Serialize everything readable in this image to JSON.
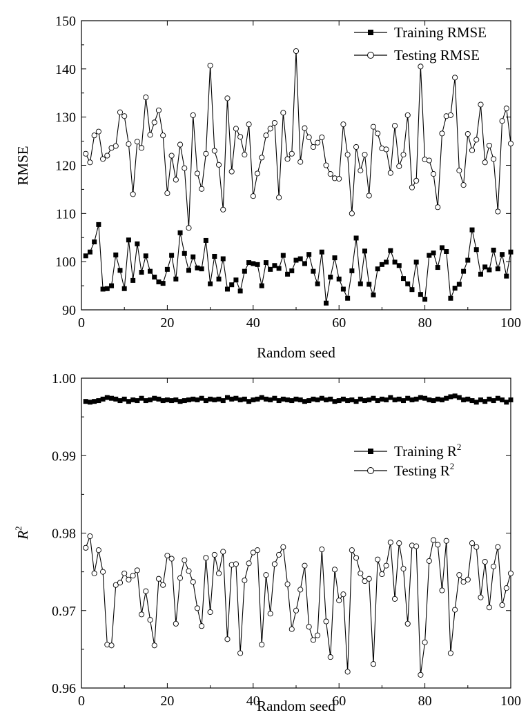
{
  "chart_data": [
    {
      "type": "line",
      "xlabel": "Random seed",
      "ylabel": "RMSE",
      "xlim": [
        0,
        100
      ],
      "ylim": [
        90,
        150
      ],
      "xticks": [
        "0",
        "20",
        "40",
        "60",
        "80",
        "100"
      ],
      "yticks": [
        "90",
        "100",
        "110",
        "120",
        "130",
        "140",
        "150"
      ],
      "legend_position": "top-right",
      "grid": false,
      "x": [
        1,
        2,
        3,
        4,
        5,
        6,
        7,
        8,
        9,
        10,
        11,
        12,
        13,
        14,
        15,
        16,
        17,
        18,
        19,
        20,
        21,
        22,
        23,
        24,
        25,
        26,
        27,
        28,
        29,
        30,
        31,
        32,
        33,
        34,
        35,
        36,
        37,
        38,
        39,
        40,
        41,
        42,
        43,
        44,
        45,
        46,
        47,
        48,
        49,
        50,
        51,
        52,
        53,
        54,
        55,
        56,
        57,
        58,
        59,
        60,
        61,
        62,
        63,
        64,
        65,
        66,
        67,
        68,
        69,
        70,
        71,
        72,
        73,
        74,
        75,
        76,
        77,
        78,
        79,
        80,
        81,
        82,
        83,
        84,
        85,
        86,
        87,
        88,
        89,
        90,
        91,
        92,
        93,
        94,
        95,
        96,
        97,
        98,
        99,
        100
      ],
      "series": [
        {
          "name": "Training RMSE",
          "marker": "filled-square",
          "values": [
            101.2,
            102.0,
            104.1,
            107.7,
            94.3,
            94.4,
            95.0,
            101.4,
            98.2,
            94.4,
            104.5,
            96.1,
            103.7,
            97.8,
            101.2,
            98.0,
            96.8,
            95.8,
            95.5,
            98.4,
            101.3,
            96.4,
            106.0,
            101.7,
            98.2,
            101.0,
            98.7,
            98.5,
            104.4,
            95.4,
            101.1,
            96.4,
            100.6,
            94.3,
            95.2,
            96.2,
            93.9,
            98.0,
            99.8,
            99.6,
            99.4,
            95.0,
            99.8,
            98.4,
            99.2,
            98.6,
            101.3,
            97.4,
            98.1,
            100.3,
            100.6,
            99.6,
            101.5,
            98.0,
            95.4,
            102.0,
            91.4,
            96.8,
            100.8,
            96.4,
            94.3,
            92.4,
            98.1,
            104.9,
            95.4,
            102.2,
            95.3,
            93.1,
            98.5,
            99.4,
            99.9,
            102.3,
            99.9,
            99.2,
            96.5,
            95.4,
            94.2,
            99.9,
            93.2,
            92.2,
            101.3,
            101.8,
            98.8,
            102.9,
            102.1,
            92.4,
            94.5,
            95.3,
            98.0,
            100.3,
            106.6,
            102.5,
            97.4,
            98.9,
            98.3,
            102.4,
            98.5,
            101.5,
            97.0,
            102.0
          ]
        },
        {
          "name": "Testing RMSE",
          "marker": "open-circle",
          "values": [
            122.4,
            120.6,
            126.2,
            127.0,
            121.3,
            122.0,
            123.6,
            124.0,
            131.0,
            130.2,
            124.4,
            114.0,
            124.9,
            123.6,
            134.1,
            126.3,
            128.9,
            131.4,
            126.2,
            114.2,
            122.0,
            117.0,
            124.3,
            119.4,
            107.0,
            130.4,
            118.3,
            115.1,
            122.4,
            140.7,
            123.0,
            120.1,
            110.8,
            133.9,
            118.7,
            127.6,
            125.9,
            122.2,
            128.5,
            113.6,
            118.3,
            121.6,
            126.2,
            127.6,
            128.8,
            113.3,
            130.9,
            121.3,
            122.4,
            143.7,
            120.7,
            127.7,
            125.8,
            123.8,
            124.7,
            125.8,
            120.0,
            118.2,
            117.3,
            117.2,
            128.5,
            122.2,
            110.0,
            123.8,
            118.9,
            122.2,
            113.7,
            128.0,
            126.6,
            123.5,
            123.3,
            118.4,
            128.2,
            119.8,
            122.2,
            130.4,
            115.4,
            116.8,
            140.5,
            121.2,
            121.0,
            118.2,
            111.3,
            126.6,
            130.2,
            130.4,
            138.2,
            118.9,
            115.9,
            126.5,
            123.1,
            125.3,
            132.6,
            120.6,
            124.1,
            121.3,
            110.4,
            129.2,
            131.8,
            124.5
          ]
        }
      ]
    },
    {
      "type": "line",
      "xlabel": "Random seed",
      "ylabel": "R",
      "ylabel_sup": "2",
      "xlim": [
        0,
        100
      ],
      "ylim": [
        0.96,
        1.0
      ],
      "xticks": [
        "0",
        "20",
        "40",
        "60",
        "80",
        "100"
      ],
      "yticks": [
        "0.96",
        "0.97",
        "0.98",
        "0.99",
        "1.00"
      ],
      "legend_position": "upper-right",
      "grid": false,
      "x": [
        1,
        2,
        3,
        4,
        5,
        6,
        7,
        8,
        9,
        10,
        11,
        12,
        13,
        14,
        15,
        16,
        17,
        18,
        19,
        20,
        21,
        22,
        23,
        24,
        25,
        26,
        27,
        28,
        29,
        30,
        31,
        32,
        33,
        34,
        35,
        36,
        37,
        38,
        39,
        40,
        41,
        42,
        43,
        44,
        45,
        46,
        47,
        48,
        49,
        50,
        51,
        52,
        53,
        54,
        55,
        56,
        57,
        58,
        59,
        60,
        61,
        62,
        63,
        64,
        65,
        66,
        67,
        68,
        69,
        70,
        71,
        72,
        73,
        74,
        75,
        76,
        77,
        78,
        79,
        80,
        81,
        82,
        83,
        84,
        85,
        86,
        87,
        88,
        89,
        90,
        91,
        92,
        93,
        94,
        95,
        96,
        97,
        98,
        99,
        100
      ],
      "series": [
        {
          "name": "Training R",
          "name_sup": "2",
          "marker": "filled-square",
          "values": [
            0.997,
            0.9969,
            0.997,
            0.9971,
            0.9973,
            0.9975,
            0.9974,
            0.9973,
            0.9971,
            0.9973,
            0.997,
            0.9972,
            0.9971,
            0.9974,
            0.9971,
            0.9972,
            0.9974,
            0.9973,
            0.9971,
            0.9972,
            0.9971,
            0.9972,
            0.997,
            0.9971,
            0.9972,
            0.9973,
            0.9972,
            0.9974,
            0.9971,
            0.9973,
            0.9972,
            0.9973,
            0.9971,
            0.9975,
            0.9973,
            0.9974,
            0.9972,
            0.9973,
            0.997,
            0.9972,
            0.9973,
            0.9975,
            0.9973,
            0.9972,
            0.9974,
            0.9971,
            0.9973,
            0.9972,
            0.9971,
            0.9973,
            0.9972,
            0.997,
            0.9971,
            0.9973,
            0.9972,
            0.9974,
            0.9972,
            0.9973,
            0.997,
            0.9971,
            0.9973,
            0.9971,
            0.9972,
            0.997,
            0.9973,
            0.9971,
            0.9972,
            0.9974,
            0.9971,
            0.9973,
            0.9972,
            0.9975,
            0.9972,
            0.9973,
            0.9971,
            0.9974,
            0.9972,
            0.9973,
            0.9975,
            0.9974,
            0.9972,
            0.9971,
            0.9973,
            0.9972,
            0.9974,
            0.9976,
            0.9977,
            0.9975,
            0.9972,
            0.9973,
            0.9971,
            0.9969,
            0.9972,
            0.997,
            0.9973,
            0.9971,
            0.9974,
            0.9972,
            0.9969,
            0.9972
          ]
        },
        {
          "name": "Testing R",
          "name_sup": "2",
          "marker": "open-circle",
          "values": [
            0.9781,
            0.9796,
            0.9748,
            0.9778,
            0.975,
            0.9656,
            0.9655,
            0.9733,
            0.9736,
            0.9748,
            0.974,
            0.9745,
            0.9752,
            0.9695,
            0.9725,
            0.9688,
            0.9655,
            0.9741,
            0.9733,
            0.9771,
            0.9767,
            0.9683,
            0.9742,
            0.9765,
            0.9751,
            0.9737,
            0.9703,
            0.968,
            0.9768,
            0.9698,
            0.9772,
            0.9748,
            0.9776,
            0.9663,
            0.9759,
            0.976,
            0.9645,
            0.9739,
            0.9761,
            0.9775,
            0.9778,
            0.9656,
            0.9746,
            0.9696,
            0.976,
            0.9772,
            0.9782,
            0.9734,
            0.9676,
            0.97,
            0.9727,
            0.9758,
            0.9679,
            0.9662,
            0.9668,
            0.9779,
            0.9686,
            0.964,
            0.9753,
            0.9713,
            0.9721,
            0.9621,
            0.9778,
            0.9768,
            0.9748,
            0.9738,
            0.9741,
            0.9631,
            0.9766,
            0.9747,
            0.9758,
            0.9788,
            0.9715,
            0.9787,
            0.9754,
            0.9683,
            0.9784,
            0.9783,
            0.9617,
            0.9659,
            0.9764,
            0.9791,
            0.9785,
            0.9726,
            0.979,
            0.9645,
            0.9701,
            0.9746,
            0.9737,
            0.974,
            0.9787,
            0.9782,
            0.9717,
            0.9763,
            0.9704,
            0.9757,
            0.9782,
            0.9707,
            0.9729,
            0.9748
          ]
        }
      ]
    }
  ]
}
